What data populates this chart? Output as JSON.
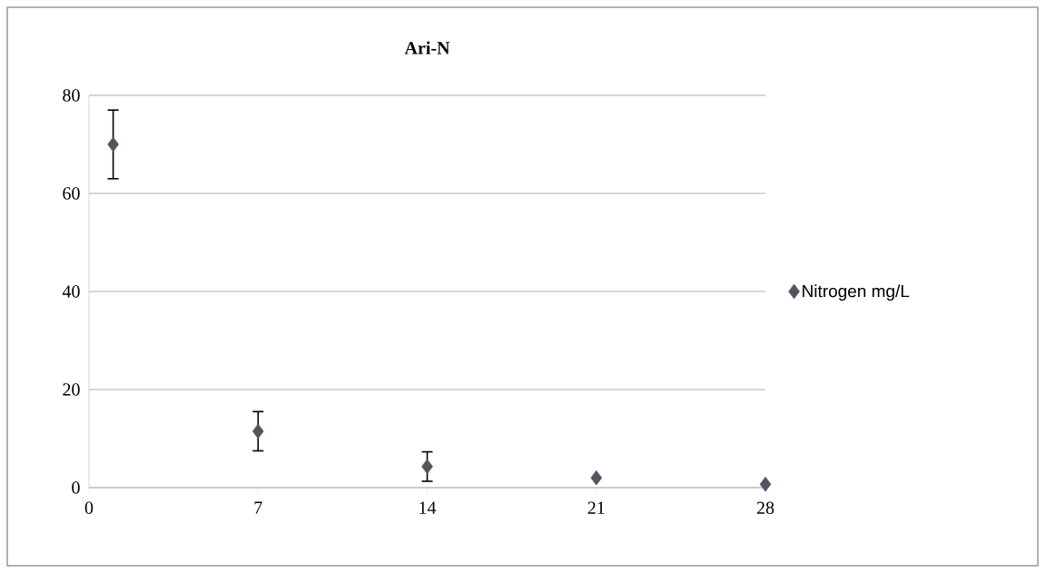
{
  "chart_data": {
    "type": "scatter",
    "title": "Ari-N",
    "x": [
      1,
      7,
      14,
      21,
      28
    ],
    "series": [
      {
        "name": "Nitrogen mg/L",
        "color": "#555555",
        "values": [
          70,
          11.5,
          4.3,
          2.0,
          0.7
        ],
        "errors": [
          7,
          4,
          3,
          null,
          null
        ]
      }
    ],
    "xlim": [
      0,
      28
    ],
    "xticks": [
      0,
      7,
      14,
      21,
      28
    ],
    "ylim": [
      0,
      80
    ],
    "yticks": [
      0,
      20,
      40,
      60,
      80
    ],
    "grid": "y",
    "legend": "right",
    "marker": "diamond"
  }
}
